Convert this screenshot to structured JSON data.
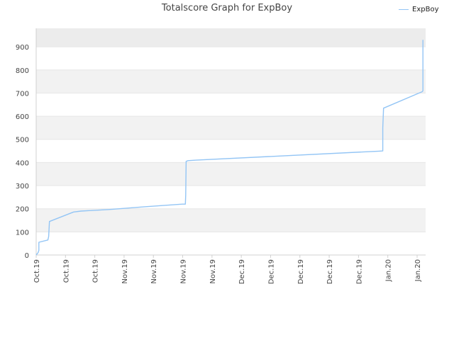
{
  "colors": {
    "series": "#93c5f5",
    "band_alt": "#f2f2f2",
    "band_top": "#ececec",
    "grid": "#e6e6e6",
    "axis": "#d0d0d0"
  },
  "chart_data": {
    "type": "line",
    "title": "Totalscore Graph for ExpBoy",
    "xlabel": "",
    "ylabel": "",
    "ylim": [
      0,
      980
    ],
    "y_ticks": [
      0,
      100,
      200,
      300,
      400,
      500,
      600,
      700,
      800,
      900
    ],
    "x_tick_labels": [
      "Oct.19",
      "Oct.19",
      "Oct.19",
      "Nov.19",
      "Nov.19",
      "Nov.19",
      "Nov.19",
      "Dec.19",
      "Dec.19",
      "Dec.19",
      "Dec.19",
      "Dec.19",
      "Jan.20",
      "Jan.20"
    ],
    "x_range": [
      0,
      100
    ],
    "legend": {
      "position": "top-right"
    },
    "grid": true,
    "series": [
      {
        "name": "ExpBoy",
        "x": [
          0,
          0.5,
          0.7,
          0.7,
          3.0,
          3.2,
          3.4,
          9.6,
          11.5,
          19.0,
          27.5,
          37.5,
          38.3,
          38.4,
          38.5,
          39.0,
          41.0,
          88.0,
          89.0,
          89.0,
          89.2,
          99.1,
          99.3,
          99.3
        ],
        "y": [
          0,
          10,
          20,
          55,
          65,
          80,
          145,
          186,
          190,
          197,
          208,
          220,
          220,
          260,
          405,
          408,
          410,
          449,
          450,
          550,
          635,
          706,
          710,
          930
        ]
      }
    ]
  }
}
